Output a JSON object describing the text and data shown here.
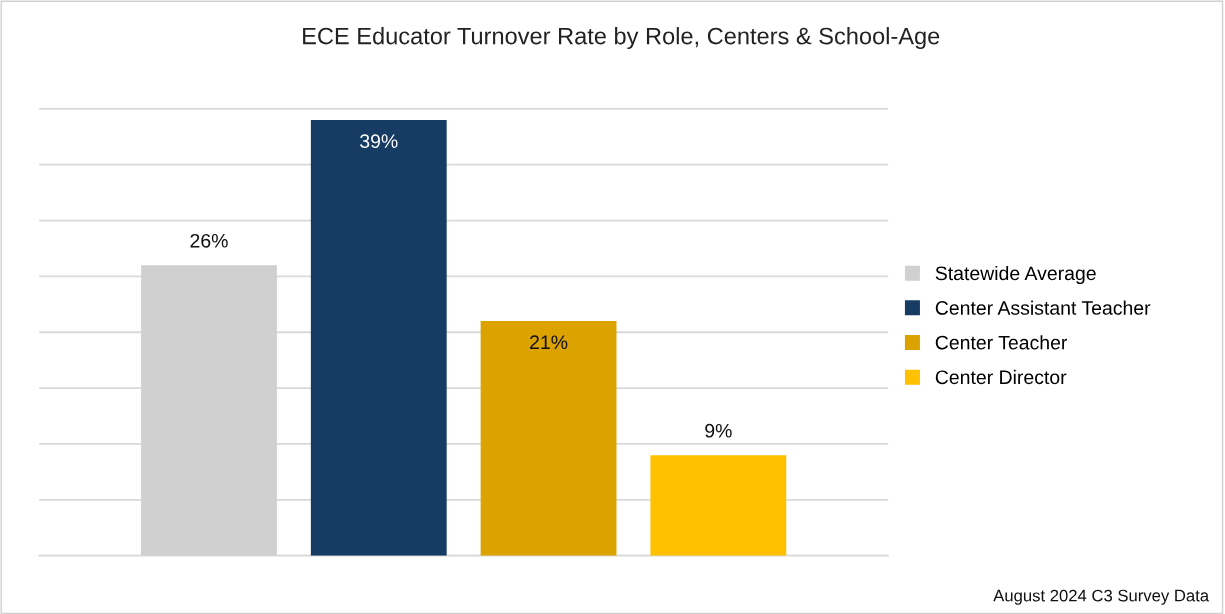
{
  "chart_data": {
    "type": "bar",
    "title": "ECE Educator Turnover Rate by Role, Centers & School-Age",
    "categories": [
      null
    ],
    "series": [
      {
        "name": "Statewide Average",
        "color": "#d0d0d0",
        "values": [
          26
        ],
        "value_labels": [
          "26%"
        ]
      },
      {
        "name": "Center Assistant Teacher",
        "color": "#173c63",
        "values": [
          39
        ],
        "value_labels": [
          "39%"
        ]
      },
      {
        "name": "Center Teacher",
        "color": "#dba200",
        "values": [
          21
        ],
        "value_labels": [
          "21%"
        ]
      },
      {
        "name": "Center Director",
        "color": "#ffc000",
        "values": [
          9
        ],
        "value_labels": [
          "9%"
        ]
      }
    ],
    "grid": "y",
    "legend": "right",
    "annotations": [
      "August 2024 C3 Survey Data"
    ]
  }
}
